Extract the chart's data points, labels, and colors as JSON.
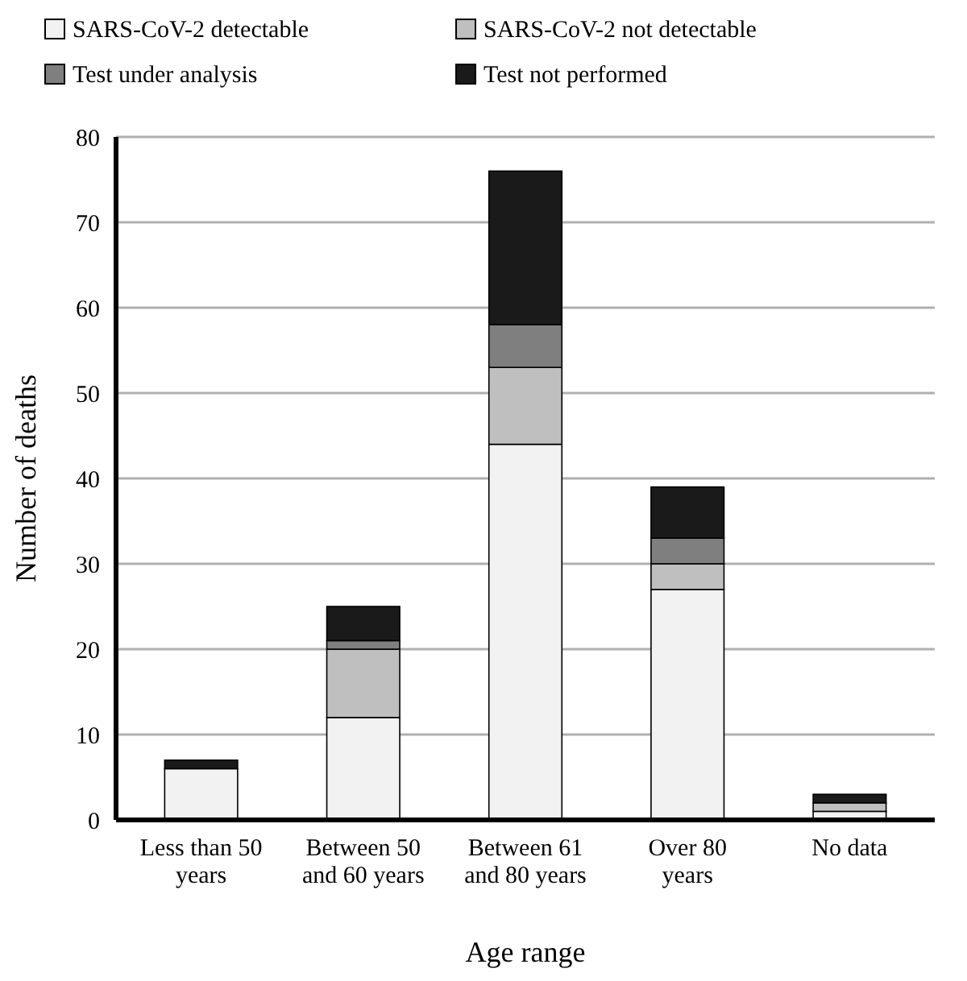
{
  "chart_data": {
    "type": "bar",
    "stacked": true,
    "xlabel": "Age range",
    "ylabel": "Number of deaths",
    "categories": [
      "Less than 50 years",
      "Between 50 and 60 years",
      "Between 61 and 80 years",
      "Over 80 years",
      "No data"
    ],
    "series": [
      {
        "name": "SARS-CoV-2 detectable",
        "color": "#f2f2f2",
        "values": [
          6,
          12,
          44,
          27,
          1
        ]
      },
      {
        "name": "SARS-CoV-2 not detectable",
        "color": "#bfbfbf",
        "values": [
          0,
          8,
          9,
          3,
          1
        ]
      },
      {
        "name": "Test under analysis",
        "color": "#7f7f7f",
        "values": [
          0,
          1,
          5,
          3,
          0
        ]
      },
      {
        "name": "Test not performed",
        "color": "#1a1a1a",
        "values": [
          1,
          4,
          18,
          6,
          1
        ]
      }
    ],
    "ylim": [
      0,
      80
    ],
    "yticks": [
      0,
      10,
      20,
      30,
      40,
      50,
      60,
      70,
      80
    ],
    "grid": "y",
    "legend": "top"
  }
}
